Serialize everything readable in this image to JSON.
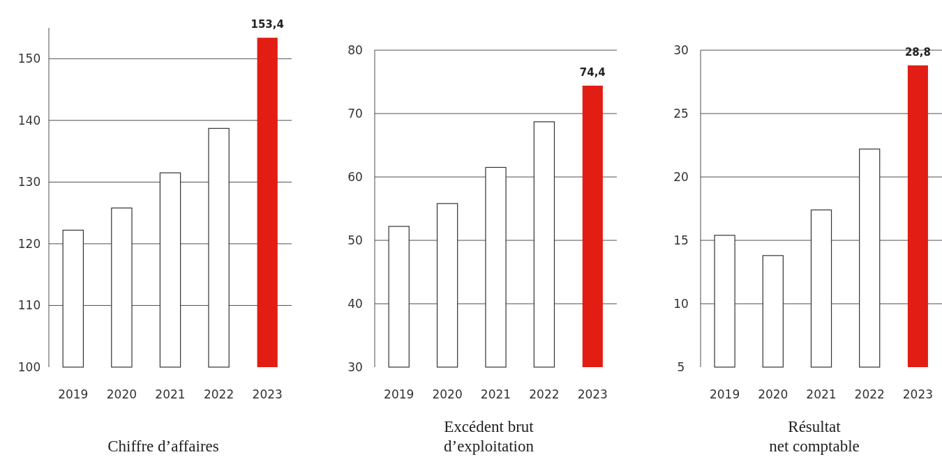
{
  "chart_data": [
    {
      "type": "bar",
      "title": "Chiffre d’affaires",
      "categories": [
        "2019",
        "2020",
        "2021",
        "2022",
        "2023"
      ],
      "values": [
        122.2,
        125.8,
        131.5,
        138.7,
        153.4
      ],
      "colors": [
        "#ffffff",
        "#ffffff",
        "#ffffff",
        "#ffffff",
        "#e11d14"
      ],
      "value_labels": [
        null,
        null,
        null,
        null,
        "153,4"
      ],
      "ylim": [
        100,
        155
      ],
      "yticks": [
        100,
        110,
        120,
        130,
        140,
        150
      ],
      "grid": "y"
    },
    {
      "type": "bar",
      "title": "Excédent brut\nd’exploitation",
      "categories": [
        "2019",
        "2020",
        "2021",
        "2022",
        "2023"
      ],
      "values": [
        52.2,
        55.8,
        61.5,
        68.7,
        74.4
      ],
      "colors": [
        "#ffffff",
        "#ffffff",
        "#ffffff",
        "#ffffff",
        "#e11d14"
      ],
      "value_labels": [
        null,
        null,
        null,
        null,
        "74,4"
      ],
      "ylim": [
        30,
        80
      ],
      "yticks": [
        30,
        40,
        50,
        60,
        70,
        80
      ],
      "grid": "y"
    },
    {
      "type": "bar",
      "title": "Résultat\nnet comptable",
      "categories": [
        "2019",
        "2020",
        "2021",
        "2022",
        "2023"
      ],
      "values": [
        15.4,
        13.8,
        17.4,
        22.2,
        28.8
      ],
      "colors": [
        "#ffffff",
        "#ffffff",
        "#ffffff",
        "#ffffff",
        "#e11d14"
      ],
      "value_labels": [
        null,
        null,
        null,
        null,
        "28,8"
      ],
      "ylim": [
        5,
        30
      ],
      "yticks": [
        5,
        10,
        15,
        20,
        25,
        30
      ],
      "grid": "y"
    }
  ]
}
